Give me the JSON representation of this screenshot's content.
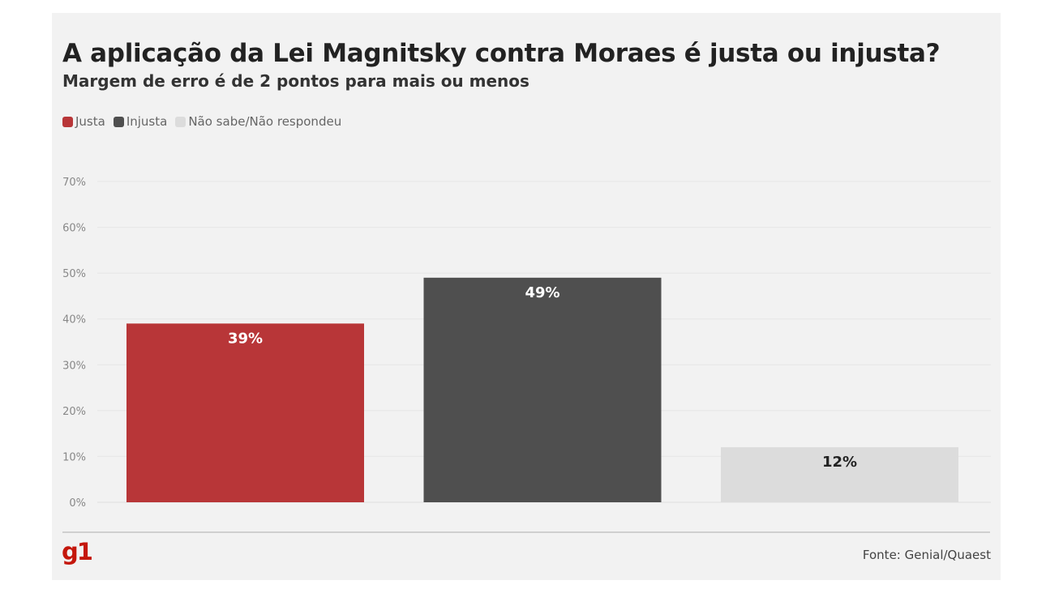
{
  "header": {
    "title": "A aplicação da Lei Magnitsky contra Moraes é justa ou injusta?",
    "subtitle": "Margem de erro é de 2 pontos para mais ou menos"
  },
  "footer": {
    "logo": "g1",
    "source": "Fonte: Genial/Quaest"
  },
  "colors": {
    "justa": "#b83638",
    "injusta": "#4f4f4f",
    "nao_sabe": "#dcdcdc"
  },
  "chart_data": {
    "type": "bar",
    "title": "A aplicação da Lei Magnitsky contra Moraes é justa ou injusta?",
    "subtitle": "Margem de erro é de 2 pontos para mais ou menos",
    "categories": [
      "Justa",
      "Injusta",
      "Não sabe/Não respondeu"
    ],
    "values": [
      39,
      49,
      12
    ],
    "data_labels": [
      "39%",
      "49%",
      "12%"
    ],
    "colors": [
      "#b83638",
      "#4f4f4f",
      "#dcdcdc"
    ],
    "label_colors": [
      "#ffffff",
      "#ffffff",
      "#222222"
    ],
    "y_ticks": [
      0,
      10,
      20,
      30,
      40,
      50,
      60,
      70
    ],
    "y_tick_labels": [
      "0%",
      "10%",
      "20%",
      "30%",
      "40%",
      "50%",
      "60%",
      "70%"
    ],
    "ylim": [
      0,
      70
    ],
    "xlabel": "",
    "ylabel": "",
    "grid": true,
    "legend": "top-left"
  }
}
